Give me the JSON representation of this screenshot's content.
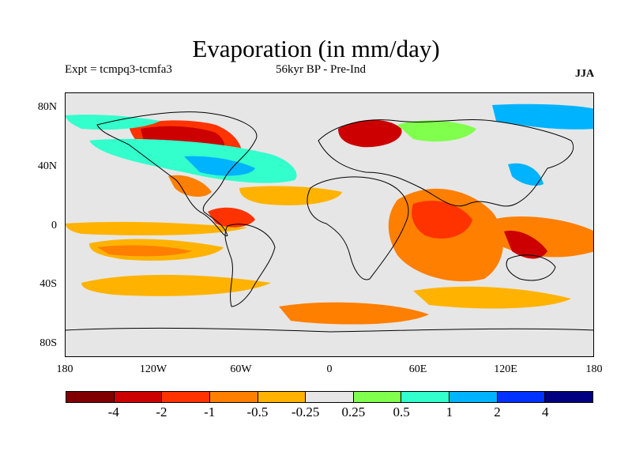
{
  "title": "Evaporation (in mm/day)",
  "expt": "Expt = tcmpq3-tcmfa3",
  "period": "56kyr BP - Pre-Ind",
  "season": "JJA",
  "lat_labels": [
    "80N",
    "40N",
    "0",
    "40S",
    "80S"
  ],
  "lon_labels": [
    "180",
    "120W",
    "60W",
    "0",
    "60E",
    "120E",
    "180"
  ],
  "colorbar": {
    "colors": [
      "#800000",
      "#cc0000",
      "#ff3300",
      "#ff7f00",
      "#ffb300",
      "#e6e6e6",
      "#80ff4d",
      "#33ffcc",
      "#00b3ff",
      "#0033ff",
      "#000080"
    ],
    "labels": [
      "-4",
      "-2",
      "-1",
      "-0.5",
      "-0.25",
      "0.25",
      "0.5",
      "1",
      "2",
      "4"
    ]
  }
}
